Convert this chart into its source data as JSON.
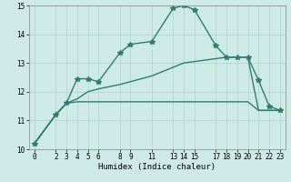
{
  "xlabel": "Humidex (Indice chaleur)",
  "bg_color": "#ceeae7",
  "line_color": "#2e7d6e",
  "grid_color": "#aed4d0",
  "xlim": [
    -0.5,
    23.5
  ],
  "ylim": [
    10,
    15
  ],
  "xticks": [
    0,
    2,
    3,
    4,
    5,
    6,
    8,
    9,
    11,
    13,
    14,
    15,
    17,
    18,
    19,
    20,
    21,
    22,
    23
  ],
  "yticks": [
    10,
    11,
    12,
    13,
    14,
    15
  ],
  "line1_x": [
    0,
    2,
    3,
    4,
    5,
    6,
    8,
    9,
    11,
    13,
    14,
    15,
    17,
    18,
    19,
    20,
    21,
    22,
    23
  ],
  "line1_y": [
    10.2,
    11.2,
    11.6,
    12.45,
    12.45,
    12.35,
    13.35,
    13.65,
    13.75,
    14.9,
    15.0,
    14.85,
    13.6,
    13.2,
    13.2,
    13.2,
    12.4,
    11.5,
    11.35
  ],
  "line2_x": [
    0,
    2,
    3,
    4,
    5,
    6,
    8,
    9,
    11,
    13,
    14,
    15,
    17,
    18,
    19,
    20,
    21,
    22,
    23
  ],
  "line2_y": [
    10.2,
    11.2,
    11.6,
    11.65,
    11.65,
    11.65,
    11.65,
    11.65,
    11.65,
    11.65,
    11.65,
    11.65,
    11.65,
    11.65,
    11.65,
    11.65,
    11.35,
    11.35,
    11.35
  ],
  "line3_x": [
    0,
    2,
    3,
    4,
    5,
    6,
    8,
    9,
    11,
    13,
    14,
    15,
    17,
    18,
    19,
    20,
    21,
    22,
    23
  ],
  "line3_y": [
    10.2,
    11.2,
    11.6,
    11.75,
    12.0,
    12.1,
    12.25,
    12.35,
    12.55,
    12.85,
    13.0,
    13.05,
    13.15,
    13.2,
    13.2,
    13.2,
    11.35,
    11.35,
    11.35
  ],
  "marker_size": 4,
  "line_width": 1.0,
  "fontsize_ticks": 5.5,
  "fontsize_label": 6.5
}
